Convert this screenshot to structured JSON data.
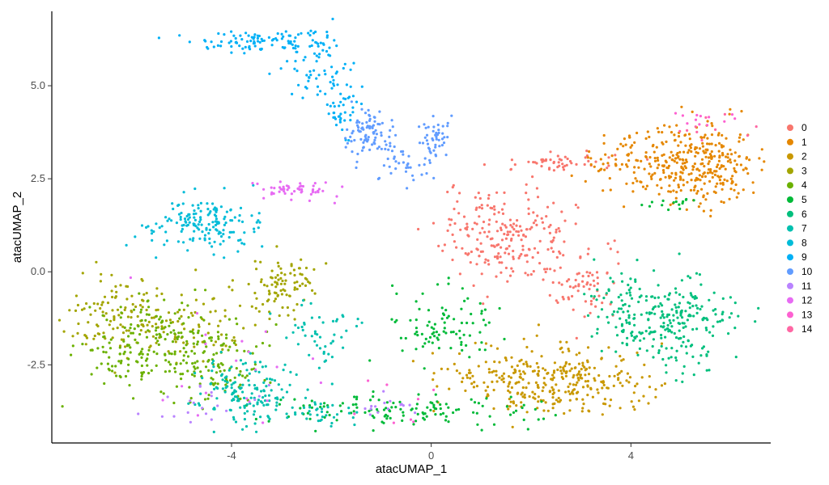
{
  "chart_data": {
    "type": "scatter",
    "title": "",
    "xlabel": "atacUMAP_1",
    "ylabel": "atacUMAP_2",
    "xlim": [
      -7.6,
      6.8
    ],
    "ylim": [
      -4.6,
      7.0
    ],
    "xticks": [
      {
        "value": -4,
        "label": "-4"
      },
      {
        "value": 0,
        "label": "0"
      },
      {
        "value": 4,
        "label": "4"
      }
    ],
    "yticks": [
      {
        "value": -2.5,
        "label": "-2.5"
      },
      {
        "value": 0,
        "label": "0.0"
      },
      {
        "value": 2.5,
        "label": "2.5"
      },
      {
        "value": 5,
        "label": "5.0"
      }
    ],
    "grid": false,
    "legend_position": "right",
    "series": [
      {
        "name": "0",
        "color": "#F8766D",
        "clusters": [
          {
            "cx": 1.6,
            "cy": 1.0,
            "sx": 0.7,
            "sy": 0.65,
            "n": 230
          },
          {
            "cx": 3.0,
            "cy": -0.4,
            "sx": 0.35,
            "sy": 0.45,
            "n": 60
          },
          {
            "cx": 2.6,
            "cy": 2.9,
            "sx": 0.5,
            "sy": 0.12,
            "n": 50
          }
        ]
      },
      {
        "name": "1",
        "color": "#E58700",
        "clusters": [
          {
            "cx": 5.3,
            "cy": 2.9,
            "sx": 0.6,
            "sy": 0.55,
            "n": 320
          },
          {
            "cx": 3.9,
            "cy": 3.0,
            "sx": 0.45,
            "sy": 0.35,
            "n": 60
          }
        ]
      },
      {
        "name": "2",
        "color": "#C99800",
        "clusters": [
          {
            "cx": 2.4,
            "cy": -2.9,
            "sx": 1.0,
            "sy": 0.45,
            "n": 330
          }
        ]
      },
      {
        "name": "3",
        "color": "#A3A500",
        "clusters": [
          {
            "cx": -6.2,
            "cy": -1.2,
            "sx": 0.5,
            "sy": 0.55,
            "n": 110
          },
          {
            "cx": -3.0,
            "cy": -0.3,
            "sx": 0.35,
            "sy": 0.4,
            "n": 90
          },
          {
            "cx": -4.8,
            "cy": -1.5,
            "sx": 0.6,
            "sy": 0.5,
            "n": 80
          }
        ]
      },
      {
        "name": "4",
        "color": "#6BB100",
        "clusters": [
          {
            "cx": -5.3,
            "cy": -2.0,
            "sx": 0.8,
            "sy": 0.55,
            "n": 230
          },
          {
            "cx": -4.3,
            "cy": -2.8,
            "sx": 0.5,
            "sy": 0.4,
            "n": 60
          }
        ]
      },
      {
        "name": "5",
        "color": "#00BA38",
        "clusters": [
          {
            "cx": -0.5,
            "cy": -3.7,
            "sx": 1.4,
            "sy": 0.22,
            "n": 130
          },
          {
            "cx": 0.2,
            "cy": -1.5,
            "sx": 0.55,
            "sy": 0.5,
            "n": 90
          },
          {
            "cx": 4.8,
            "cy": 1.8,
            "sx": 0.3,
            "sy": 0.12,
            "n": 15
          }
        ]
      },
      {
        "name": "6",
        "color": "#00BF7D",
        "clusters": [
          {
            "cx": 4.9,
            "cy": -1.3,
            "sx": 0.55,
            "sy": 0.6,
            "n": 230
          },
          {
            "cx": 3.8,
            "cy": -0.9,
            "sx": 0.35,
            "sy": 0.5,
            "n": 60
          }
        ]
      },
      {
        "name": "7",
        "color": "#00C0AF",
        "clusters": [
          {
            "cx": -3.7,
            "cy": -3.2,
            "sx": 0.5,
            "sy": 0.45,
            "n": 140
          },
          {
            "cx": -2.2,
            "cy": -1.7,
            "sx": 0.35,
            "sy": 0.5,
            "n": 50
          },
          {
            "cx": -2.4,
            "cy": -3.8,
            "sx": 0.5,
            "sy": 0.18,
            "n": 40
          }
        ]
      },
      {
        "name": "8",
        "color": "#00BCD8",
        "clusters": [
          {
            "cx": -4.5,
            "cy": 1.3,
            "sx": 0.55,
            "sy": 0.4,
            "n": 160
          }
        ]
      },
      {
        "name": "9",
        "color": "#00B0F6",
        "clusters": [
          {
            "cx": -3.6,
            "cy": 6.2,
            "sx": 0.55,
            "sy": 0.15,
            "n": 80
          },
          {
            "cx": -2.4,
            "cy": 5.7,
            "sx": 0.25,
            "sy": 0.45,
            "n": 70
          },
          {
            "cx": -1.8,
            "cy": 4.4,
            "sx": 0.2,
            "sy": 0.55,
            "n": 50
          }
        ]
      },
      {
        "name": "10",
        "color": "#619CFF",
        "clusters": [
          {
            "cx": -1.3,
            "cy": 3.7,
            "sx": 0.25,
            "sy": 0.35,
            "n": 90
          },
          {
            "cx": 0.1,
            "cy": 3.5,
            "sx": 0.15,
            "sy": 0.35,
            "n": 50
          },
          {
            "cx": -0.6,
            "cy": 2.8,
            "sx": 0.3,
            "sy": 0.35,
            "n": 30
          }
        ]
      },
      {
        "name": "11",
        "color": "#B983FF",
        "clusters": [
          {
            "cx": -4.6,
            "cy": -3.6,
            "sx": 0.8,
            "sy": 0.3,
            "n": 20
          },
          {
            "cx": -0.8,
            "cy": -3.6,
            "sx": 0.3,
            "sy": 0.2,
            "n": 15
          }
        ]
      },
      {
        "name": "12",
        "color": "#E76BF3",
        "clusters": [
          {
            "cx": -2.7,
            "cy": 2.2,
            "sx": 0.45,
            "sy": 0.12,
            "n": 50
          },
          {
            "cx": -4.2,
            "cy": -2.5,
            "sx": 0.8,
            "sy": 0.8,
            "n": 20
          }
        ]
      },
      {
        "name": "13",
        "color": "#FD61D1",
        "clusters": [
          {
            "cx": 5.4,
            "cy": 4.1,
            "sx": 0.3,
            "sy": 0.1,
            "n": 12
          },
          {
            "cx": -0.6,
            "cy": -3.4,
            "sx": 0.4,
            "sy": 0.3,
            "n": 8
          }
        ]
      },
      {
        "name": "14",
        "color": "#FF67A4",
        "clusters": [
          {
            "cx": 5.7,
            "cy": 3.8,
            "sx": 0.3,
            "sy": 0.2,
            "n": 10
          }
        ]
      }
    ]
  }
}
